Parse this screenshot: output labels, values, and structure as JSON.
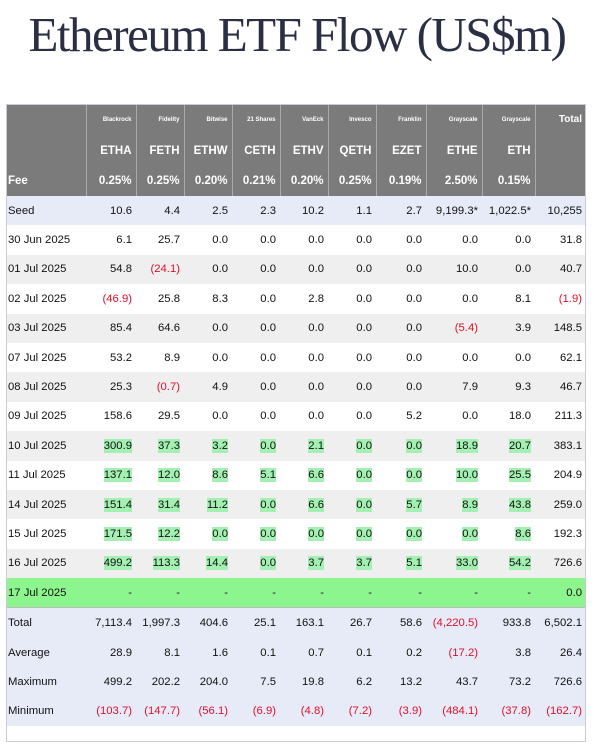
{
  "title": "Ethereum ETF Flow (US$m)",
  "issuers": [
    "Blackrock",
    "Fidelity",
    "Bitwise",
    "21 Shares",
    "VanEck",
    "Invesco",
    "Franklin",
    "Grayscale",
    "Grayscale"
  ],
  "total_label": "Total",
  "tickers": [
    "ETHA",
    "FETH",
    "ETHW",
    "CETH",
    "ETHV",
    "QETH",
    "EZET",
    "ETHE",
    "ETH"
  ],
  "fee_label": "Fee",
  "fees": [
    "0.25%",
    "0.25%",
    "0.20%",
    "0.21%",
    "0.20%",
    "0.25%",
    "0.19%",
    "2.50%",
    "0.15%"
  ],
  "rows": [
    {
      "label": "Seed",
      "style": "blue",
      "cells": [
        "10.6",
        "4.4",
        "2.5",
        "2.3",
        "10.2",
        "1.1",
        "2.7",
        "9,199.3*",
        "1,022.5*",
        "10,255"
      ]
    },
    {
      "label": "30 Jun 2025",
      "style": "white",
      "cells": [
        "6.1",
        "25.7",
        "0.0",
        "0.0",
        "0.0",
        "0.0",
        "0.0",
        "0.0",
        "0.0",
        "31.8"
      ]
    },
    {
      "label": "01 Jul 2025",
      "style": "grey",
      "cells": [
        "54.8",
        "(24.1)",
        "0.0",
        "0.0",
        "0.0",
        "0.0",
        "0.0",
        "10.0",
        "0.0",
        "40.7"
      ]
    },
    {
      "label": "02 Jul 2025",
      "style": "white",
      "cells": [
        "(46.9)",
        "25.8",
        "8.3",
        "0.0",
        "2.8",
        "0.0",
        "0.0",
        "0.0",
        "8.1",
        "(1.9)"
      ]
    },
    {
      "label": "03 Jul 2025",
      "style": "grey",
      "cells": [
        "85.4",
        "64.6",
        "0.0",
        "0.0",
        "0.0",
        "0.0",
        "0.0",
        "(5.4)",
        "3.9",
        "148.5"
      ]
    },
    {
      "label": "07 Jul 2025",
      "style": "white",
      "cells": [
        "53.2",
        "8.9",
        "0.0",
        "0.0",
        "0.0",
        "0.0",
        "0.0",
        "0.0",
        "0.0",
        "62.1"
      ]
    },
    {
      "label": "08 Jul 2025",
      "style": "grey",
      "cells": [
        "25.3",
        "(0.7)",
        "4.9",
        "0.0",
        "0.0",
        "0.0",
        "0.0",
        "7.9",
        "9.3",
        "46.7"
      ]
    },
    {
      "label": "09 Jul 2025",
      "style": "white",
      "cells": [
        "158.6",
        "29.5",
        "0.0",
        "0.0",
        "0.0",
        "0.0",
        "5.2",
        "0.0",
        "18.0",
        "211.3"
      ]
    },
    {
      "label": "10 Jul 2025",
      "style": "grey",
      "green": true,
      "cells": [
        "300.9",
        "37.3",
        "3.2",
        "0.0",
        "2.1",
        "0.0",
        "0.0",
        "18.9",
        "20.7",
        "383.1"
      ]
    },
    {
      "label": "11 Jul 2025",
      "style": "white",
      "green": true,
      "cells": [
        "137.1",
        "12.0",
        "8.6",
        "5.1",
        "6.6",
        "0.0",
        "0.0",
        "10.0",
        "25.5",
        "204.9"
      ]
    },
    {
      "label": "14 Jul 2025",
      "style": "grey",
      "green": true,
      "cells": [
        "151.4",
        "31.4",
        "11.2",
        "0.0",
        "6.6",
        "0.0",
        "5.7",
        "8.9",
        "43.8",
        "259.0"
      ]
    },
    {
      "label": "15 Jul 2025",
      "style": "white",
      "green": true,
      "cells": [
        "171.5",
        "12.2",
        "0.0",
        "0.0",
        "0.0",
        "0.0",
        "0.0",
        "0.0",
        "8.6",
        "192.3"
      ]
    },
    {
      "label": "16 Jul 2025",
      "style": "grey",
      "green": true,
      "cells": [
        "499.2",
        "113.3",
        "14.4",
        "0.0",
        "3.7",
        "3.7",
        "5.1",
        "33.0",
        "54.2",
        "726.6"
      ]
    },
    {
      "label": "17 Jul 2025",
      "style": "highlight",
      "cells": [
        "-",
        "-",
        "-",
        "-",
        "-",
        "-",
        "-",
        "-",
        "-",
        "0.0"
      ]
    }
  ],
  "summary": [
    {
      "label": "Total",
      "cells": [
        "7,113.4",
        "1,997.3",
        "404.6",
        "25.1",
        "163.1",
        "26.7",
        "58.6",
        "(4,220.5)",
        "933.8",
        "6,502.1"
      ]
    },
    {
      "label": "Average",
      "cells": [
        "28.9",
        "8.1",
        "1.6",
        "0.1",
        "0.7",
        "0.1",
        "0.2",
        "(17.2)",
        "3.8",
        "26.4"
      ]
    },
    {
      "label": "Maximum",
      "cells": [
        "499.2",
        "202.2",
        "204.0",
        "7.5",
        "19.8",
        "6.2",
        "13.2",
        "43.7",
        "73.2",
        "726.6"
      ]
    },
    {
      "label": "Minimum",
      "cells": [
        "(103.7)",
        "(147.7)",
        "(56.1)",
        "(6.9)",
        "(4.8)",
        "(7.2)",
        "(3.9)",
        "(484.1)",
        "(37.8)",
        "(162.7)"
      ]
    }
  ],
  "colors": {
    "header_bg": "#7b7b7b",
    "negative": "#e0102a",
    "positive_highlight": "#a3f0b2",
    "today_row": "#8df58d",
    "seed_summary_bg": "#e6ebf7",
    "title": "#2b2f44"
  }
}
